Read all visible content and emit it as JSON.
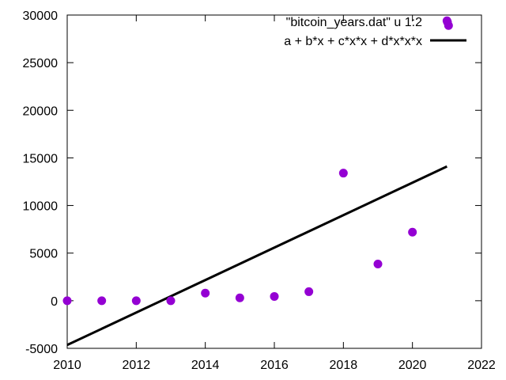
{
  "chart_data": {
    "type": "scatter",
    "title": "",
    "xlabel": "",
    "ylabel": "",
    "xlim": [
      2010,
      2022
    ],
    "ylim": [
      -5000,
      30000
    ],
    "xticks": [
      2010,
      2012,
      2014,
      2016,
      2018,
      2020,
      2022
    ],
    "yticks": [
      -5000,
      0,
      5000,
      10000,
      15000,
      20000,
      25000,
      30000
    ],
    "grid": false,
    "legend_position": "top-right",
    "series": [
      {
        "name": "\"bitcoin_years.dat\" u 1:2",
        "type": "scatter",
        "color": "#9400d3",
        "x": [
          2010,
          2011,
          2012,
          2013,
          2014,
          2015,
          2016,
          2017,
          2018,
          2019,
          2020,
          2021
        ],
        "y": [
          0,
          0,
          0,
          0,
          800,
          300,
          450,
          950,
          13400,
          3850,
          7200,
          29400
        ]
      },
      {
        "name": "a + b*x + c*x*x + d*x*x*x",
        "type": "line",
        "color": "#000000",
        "x": [
          2010,
          2021
        ],
        "y": [
          -4650,
          14100
        ]
      }
    ]
  }
}
